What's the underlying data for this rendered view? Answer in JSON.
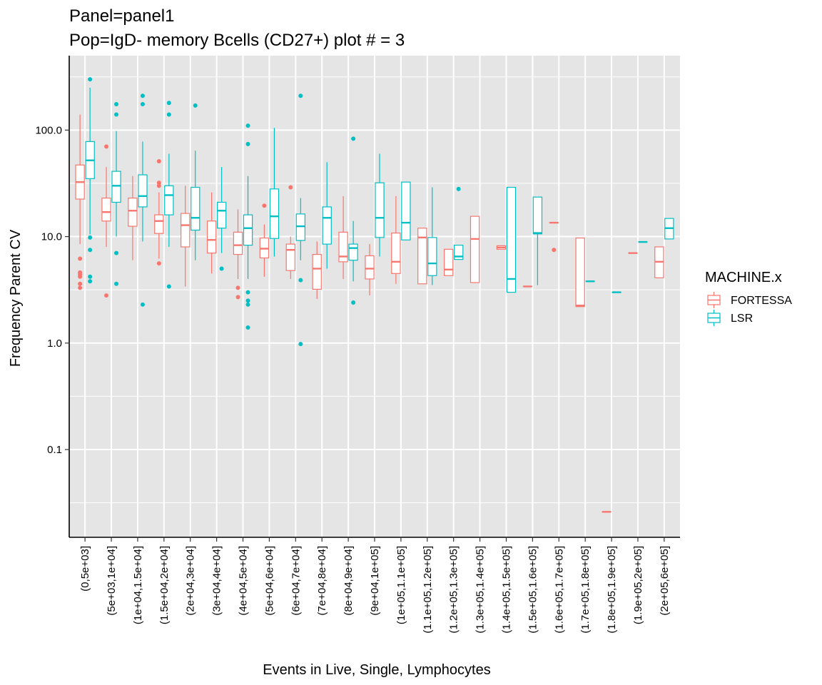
{
  "chart_data": {
    "type": "box",
    "title": "Panel=panel1",
    "subtitle": "Pop=IgD- memory Bcells (CD27+) plot # = 3",
    "xlabel": "Events in Live, Single, Lymphocytes",
    "ylabel": "Frequency Parent CV",
    "yscale": "log10",
    "ylim": [
      0.015,
      500
    ],
    "yticks": [
      {
        "value": 0.1,
        "label": "0.1"
      },
      {
        "value": 1,
        "label": "1.0"
      },
      {
        "value": 10,
        "label": "10.0"
      },
      {
        "value": 100,
        "label": "100.0"
      }
    ],
    "grid": true,
    "legend": {
      "title": "MACHINE.x",
      "position": "right"
    },
    "series": [
      {
        "name": "FORTESSA",
        "color": "#F8766D"
      },
      {
        "name": "LSR",
        "color": "#00BFC4"
      }
    ],
    "categories": [
      "(0,5e+03]",
      "(5e+03,1e+04]",
      "(1e+04,1.5e+04]",
      "(1.5e+04,2e+04]",
      "(2e+04,3e+04]",
      "(3e+04,4e+04]",
      "(4e+04,5e+04]",
      "(5e+04,6e+04]",
      "(6e+04,7e+04]",
      "(7e+04,8e+04]",
      "(8e+04,9e+04]",
      "(9e+04,1e+05]",
      "(1e+05,1.1e+05]",
      "(1.1e+05,1.2e+05]",
      "(1.2e+05,1.3e+05]",
      "(1.3e+05,1.4e+05]",
      "(1.4e+05,1.5e+05]",
      "(1.5e+05,1.6e+05]",
      "(1.6e+05,1.7e+05]",
      "(1.7e+05,1.8e+05]",
      "(1.8e+05,1.9e+05]",
      "(1.9e+05,2e+05]",
      "(2e+05,6e+05]"
    ],
    "boxes": [
      {
        "category": 0,
        "series": "FORTESSA",
        "min": 8.5,
        "q1": 22.5,
        "median": 32.5,
        "q3": 47,
        "max": 140,
        "outliers": [
          6.2,
          4.6,
          4.4,
          4.2,
          3.6,
          3.3
        ]
      },
      {
        "category": 0,
        "series": "LSR",
        "min": 10.5,
        "q1": 35,
        "median": 52,
        "q3": 78,
        "max": 250,
        "outliers": [
          300,
          9.8,
          7.5,
          4.2,
          3.8
        ]
      },
      {
        "category": 1,
        "series": "FORTESSA",
        "min": 8,
        "q1": 14,
        "median": 17,
        "q3": 23,
        "max": 45,
        "outliers": [
          70,
          2.8
        ]
      },
      {
        "category": 1,
        "series": "LSR",
        "min": 10,
        "q1": 21,
        "median": 30,
        "q3": 41,
        "max": 98,
        "outliers": [
          175,
          140,
          7,
          3.6
        ]
      },
      {
        "category": 2,
        "series": "FORTESSA",
        "min": 6,
        "q1": 12.5,
        "median": 17.5,
        "q3": 23,
        "max": 37,
        "outliers": []
      },
      {
        "category": 2,
        "series": "LSR",
        "min": 9,
        "q1": 19,
        "median": 24,
        "q3": 38,
        "max": 78,
        "outliers": [
          210,
          175,
          2.3
        ]
      },
      {
        "category": 3,
        "series": "FORTESSA",
        "min": 6.2,
        "q1": 10.7,
        "median": 14,
        "q3": 16,
        "max": 26,
        "outliers": [
          51,
          32,
          30,
          5.6
        ]
      },
      {
        "category": 3,
        "series": "LSR",
        "min": 8,
        "q1": 16,
        "median": 24.5,
        "q3": 30,
        "max": 60,
        "outliers": [
          180,
          140,
          3.4
        ]
      },
      {
        "category": 4,
        "series": "FORTESSA",
        "min": 3.4,
        "q1": 8,
        "median": 12.8,
        "q3": 16.5,
        "max": 30,
        "outliers": []
      },
      {
        "category": 4,
        "series": "LSR",
        "min": 6,
        "q1": 11.5,
        "median": 15,
        "q3": 29,
        "max": 64,
        "outliers": [
          170
        ]
      },
      {
        "category": 5,
        "series": "FORTESSA",
        "min": 4.5,
        "q1": 7,
        "median": 9.3,
        "q3": 14,
        "max": 26,
        "outliers": []
      },
      {
        "category": 5,
        "series": "LSR",
        "min": 7,
        "q1": 12,
        "median": 17.5,
        "q3": 21,
        "max": 45,
        "outliers": [
          5
        ]
      },
      {
        "category": 6,
        "series": "FORTESSA",
        "min": 4,
        "q1": 6.8,
        "median": 8.3,
        "q3": 11,
        "max": 18,
        "outliers": [
          3.3,
          2.7
        ]
      },
      {
        "category": 6,
        "series": "LSR",
        "min": 4,
        "q1": 8.3,
        "median": 12,
        "q3": 16,
        "max": 37,
        "outliers": [
          110,
          74,
          3,
          2.5,
          2.3,
          1.4
        ]
      },
      {
        "category": 7,
        "series": "FORTESSA",
        "min": 4.2,
        "q1": 6.3,
        "median": 7.7,
        "q3": 9.7,
        "max": 13,
        "outliers": [
          19.5
        ]
      },
      {
        "category": 7,
        "series": "LSR",
        "min": 6.5,
        "q1": 9.6,
        "median": 15.5,
        "q3": 28,
        "max": 105,
        "outliers": []
      },
      {
        "category": 8,
        "series": "FORTESSA",
        "min": 4,
        "q1": 4.8,
        "median": 7.5,
        "q3": 8.5,
        "max": 10,
        "outliers": [
          29
        ]
      },
      {
        "category": 8,
        "series": "LSR",
        "min": 6,
        "q1": 9.2,
        "median": 12.5,
        "q3": 16.3,
        "max": 23,
        "outliers": [
          210,
          3.9,
          0.98
        ]
      },
      {
        "category": 9,
        "series": "FORTESSA",
        "min": 2.6,
        "q1": 3.2,
        "median": 5,
        "q3": 6.8,
        "max": 9,
        "outliers": []
      },
      {
        "category": 9,
        "series": "LSR",
        "min": 5,
        "q1": 8.5,
        "median": 15,
        "q3": 19,
        "max": 50,
        "outliers": []
      },
      {
        "category": 10,
        "series": "FORTESSA",
        "min": 4,
        "q1": 5.8,
        "median": 6.5,
        "q3": 11,
        "max": 24,
        "outliers": []
      },
      {
        "category": 10,
        "series": "LSR",
        "min": 3.8,
        "q1": 6,
        "median": 7.8,
        "q3": 8.5,
        "max": 14,
        "outliers": [
          83,
          2.4
        ]
      },
      {
        "category": 11,
        "series": "FORTESSA",
        "min": 2.8,
        "q1": 4,
        "median": 5,
        "q3": 6.6,
        "max": 8.5,
        "outliers": []
      },
      {
        "category": 11,
        "series": "LSR",
        "min": 6.5,
        "q1": 9.8,
        "median": 15,
        "q3": 32,
        "max": 60,
        "outliers": []
      },
      {
        "category": 12,
        "series": "FORTESSA",
        "min": 3.6,
        "q1": 4.5,
        "median": 5.8,
        "q3": 10.8,
        "max": 24,
        "outliers": []
      },
      {
        "category": 12,
        "series": "LSR",
        "min": 9.3,
        "q1": 9.3,
        "median": 13.5,
        "q3": 32.5,
        "max": 32.5,
        "outliers": []
      },
      {
        "category": 13,
        "series": "FORTESSA",
        "min": 3.6,
        "q1": 3.6,
        "median": 9.8,
        "q3": 12,
        "max": 12,
        "outliers": []
      },
      {
        "category": 13,
        "series": "LSR",
        "min": 3.5,
        "q1": 4.3,
        "median": 5.6,
        "q3": 9.8,
        "max": 29,
        "outliers": []
      },
      {
        "category": 14,
        "series": "FORTESSA",
        "min": 4.3,
        "q1": 4.3,
        "median": 4.9,
        "q3": 7.6,
        "max": 7.6,
        "outliers": []
      },
      {
        "category": 14,
        "series": "LSR",
        "min": 6.1,
        "q1": 6.1,
        "median": 6.5,
        "q3": 8.3,
        "max": 8.3,
        "outliers": [
          28
        ]
      },
      {
        "category": 15,
        "series": "FORTESSA",
        "min": 3.7,
        "q1": 3.7,
        "median": 9.5,
        "q3": 15.5,
        "max": 15.5,
        "outliers": []
      },
      {
        "category": 16,
        "series": "FORTESSA",
        "min": 7.6,
        "q1": 7.6,
        "median": 7.9,
        "q3": 8.2,
        "max": 8.2,
        "outliers": []
      },
      {
        "category": 16,
        "series": "LSR",
        "min": 3,
        "q1": 3,
        "median": 4,
        "q3": 29,
        "max": 29,
        "outliers": []
      },
      {
        "category": 17,
        "series": "FORTESSA",
        "min": 3.4,
        "q1": 3.4,
        "median": 3.4,
        "q3": 3.4,
        "max": 3.4,
        "outliers": []
      },
      {
        "category": 17,
        "series": "LSR",
        "min": 3.5,
        "q1": 10.6,
        "median": 10.8,
        "q3": 23.5,
        "max": 23.5,
        "outliers": []
      },
      {
        "category": 18,
        "series": "FORTESSA",
        "min": 13.5,
        "q1": 13.5,
        "median": 13.5,
        "q3": 13.5,
        "max": 13.5,
        "outliers": [
          7.5
        ]
      },
      {
        "category": 19,
        "series": "FORTESSA",
        "min": 2.2,
        "q1": 2.2,
        "median": 2.25,
        "q3": 9.7,
        "max": 9.7,
        "outliers": []
      },
      {
        "category": 19,
        "series": "LSR",
        "min": 3.8,
        "q1": 3.8,
        "median": 3.8,
        "q3": 3.8,
        "max": 3.8,
        "outliers": []
      },
      {
        "category": 20,
        "series": "FORTESSA",
        "min": 0.026,
        "q1": 0.026,
        "median": 0.026,
        "q3": 0.026,
        "max": 0.026,
        "outliers": []
      },
      {
        "category": 20,
        "series": "LSR",
        "min": 3,
        "q1": 3,
        "median": 3,
        "q3": 3,
        "max": 3,
        "outliers": []
      },
      {
        "category": 21,
        "series": "FORTESSA",
        "min": 7,
        "q1": 7,
        "median": 7,
        "q3": 7,
        "max": 7,
        "outliers": []
      },
      {
        "category": 21,
        "series": "LSR",
        "min": 8.9,
        "q1": 8.9,
        "median": 8.9,
        "q3": 8.9,
        "max": 8.9,
        "outliers": []
      },
      {
        "category": 22,
        "series": "FORTESSA",
        "min": 4.1,
        "q1": 4.1,
        "median": 5.8,
        "q3": 8,
        "max": 8,
        "outliers": []
      },
      {
        "category": 22,
        "series": "LSR",
        "min": 9.5,
        "q1": 9.5,
        "median": 12,
        "q3": 14.8,
        "max": 14.8,
        "outliers": []
      }
    ]
  }
}
